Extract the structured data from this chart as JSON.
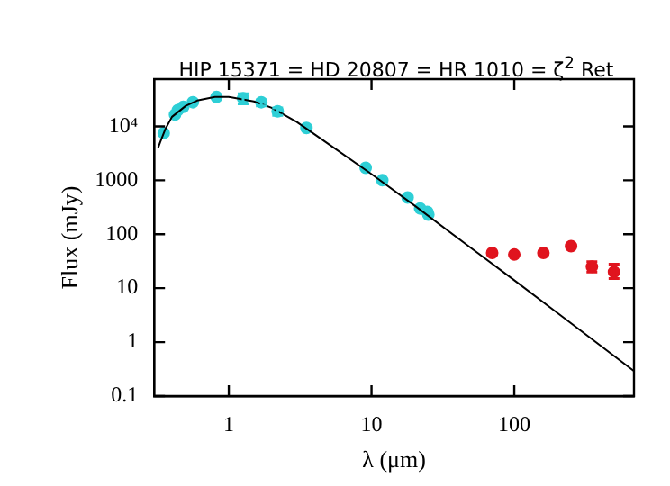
{
  "chart_data": {
    "type": "scatter",
    "title": "HIP 15371 = HD 20807 = HR 1010 = ζ$^{2}$ Ret",
    "xlabel": "λ (μm)",
    "ylabel": "Flux (mJy)",
    "log": "xy",
    "grid": false,
    "legend": false,
    "xlim": [
      0.32,
      690
    ],
    "ylim": [
      0.1,
      75000
    ],
    "xticks": [
      1,
      10,
      100
    ],
    "yticks": [
      0.1,
      1,
      10,
      100,
      1000,
      {
        "value": 10000,
        "label": "10⁴"
      }
    ],
    "series": [
      {
        "type": "line",
        "color": "#000000",
        "line_style": "solid",
        "marker": "none",
        "x": [
          0.32,
          0.33,
          0.36,
          0.4,
          0.5,
          0.6,
          0.8,
          1,
          1.5,
          2,
          3,
          5,
          10,
          20,
          50,
          100,
          200,
          690
        ],
        "values": [
          4000,
          5000,
          9000,
          15000,
          24000,
          30000,
          35000,
          35000,
          29000,
          22000,
          12000,
          4700,
          1300,
          340,
          55,
          14,
          3.5,
          0.29
        ]
      },
      {
        "type": "scatter",
        "color": "#2ecfd6",
        "marker": "circle",
        "x": [
          0.35,
          0.42,
          0.44,
          0.48,
          0.56,
          0.82,
          1.26,
          1.69,
          2.2,
          3.5,
          9.1,
          11.9,
          17.9,
          21.9,
          24.6,
          25
        ],
        "values": [
          7500,
          16500,
          20000,
          23000,
          28000,
          35000,
          33000,
          28000,
          19000,
          9300,
          1700,
          1000,
          480,
          300,
          260,
          230
        ],
        "errors": [
          null,
          null,
          null,
          null,
          null,
          null,
          [
            26000,
            40000
          ],
          [
            24000,
            31000
          ],
          [
            16000,
            22000
          ],
          null,
          null,
          null,
          null,
          null,
          null,
          null
        ]
      },
      {
        "type": "scatter",
        "color": "#e0141e",
        "marker": "circle",
        "x": [
          70,
          100,
          160,
          250,
          350,
          500
        ],
        "values": [
          45,
          42,
          45,
          60,
          25,
          20
        ],
        "errors": [
          null,
          null,
          null,
          null,
          [
            20,
            31
          ],
          [
            15,
            28
          ]
        ]
      }
    ]
  }
}
